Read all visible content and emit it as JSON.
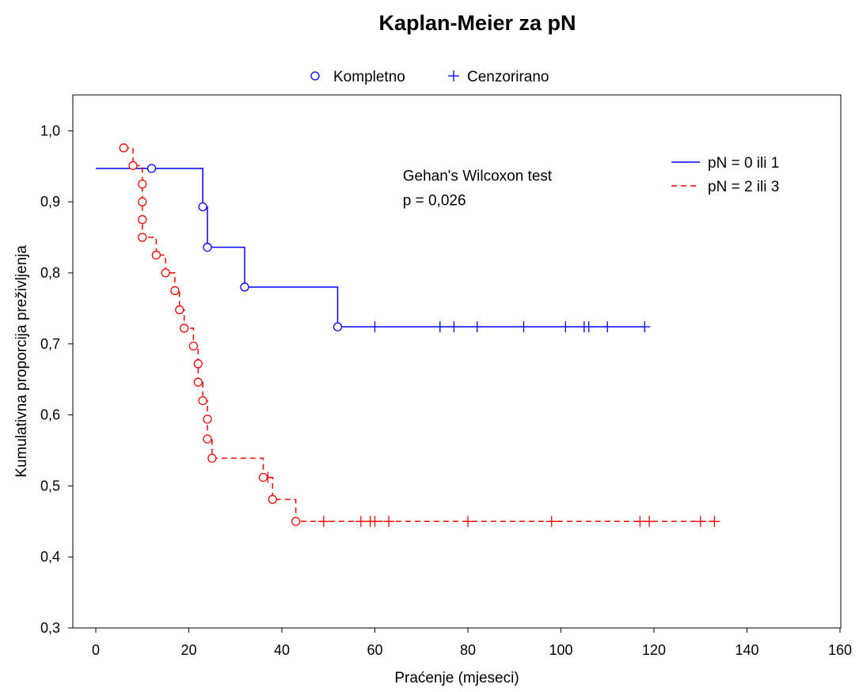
{
  "chart_data": {
    "type": "line",
    "title": "Kaplan-Meier za pN",
    "xlabel": "Praćenje (mjeseci)",
    "ylabel": "Kumulativna proporcija preživljenja",
    "xlim": [
      0,
      160
    ],
    "ylim": [
      0.3,
      1.0
    ],
    "xticks": [
      0,
      20,
      40,
      60,
      80,
      100,
      120,
      140,
      160
    ],
    "xtick_labels": [
      "0",
      "20",
      "40",
      "60",
      "80",
      "100",
      "120",
      "140",
      "160"
    ],
    "yticks": [
      0.3,
      0.4,
      0.5,
      0.6,
      0.7,
      0.8,
      0.9,
      1.0
    ],
    "ytick_labels": [
      "0,3",
      "0,4",
      "0,5",
      "0,6",
      "0,7",
      "0,8",
      "0,9",
      "1,0"
    ],
    "grid": false,
    "marker_legend": [
      {
        "label": "Kompletno",
        "marker": "circle"
      },
      {
        "label": "Cenzorirano",
        "marker": "plus"
      }
    ],
    "legend_position": "top-right",
    "annotation": {
      "line1": "Gehan's Wilcoxon test",
      "line2": "p = 0,026",
      "x": 66,
      "y": 0.93
    },
    "series": [
      {
        "name": "pN = 0 ili 1",
        "color": "#0000ff",
        "dash": "solid",
        "start": [
          0,
          0.947
        ],
        "steps": [
          [
            23,
            0.893
          ],
          [
            24,
            0.836
          ],
          [
            32,
            0.78
          ],
          [
            52,
            0.724
          ]
        ],
        "end_x": 118,
        "events": [
          [
            12,
            0.947
          ],
          [
            23,
            0.893
          ],
          [
            24,
            0.836
          ],
          [
            32,
            0.78
          ],
          [
            52,
            0.724
          ]
        ],
        "censored": [
          [
            60,
            0.724
          ],
          [
            74,
            0.724
          ],
          [
            77,
            0.724
          ],
          [
            82,
            0.724
          ],
          [
            92,
            0.724
          ],
          [
            101,
            0.724
          ],
          [
            105,
            0.724
          ],
          [
            106,
            0.724
          ],
          [
            110,
            0.724
          ],
          [
            118,
            0.724
          ]
        ]
      },
      {
        "name": "pN = 2 ili 3",
        "color": "#ff0000",
        "dash": "dashed",
        "start": [
          6,
          0.976
        ],
        "steps": [
          [
            8,
            0.951
          ],
          [
            10,
            0.925
          ],
          [
            10,
            0.9
          ],
          [
            10,
            0.875
          ],
          [
            10,
            0.85
          ],
          [
            13,
            0.825
          ],
          [
            15,
            0.8
          ],
          [
            17,
            0.775
          ],
          [
            18,
            0.748
          ],
          [
            19,
            0.722
          ],
          [
            21,
            0.697
          ],
          [
            22,
            0.672
          ],
          [
            22,
            0.646
          ],
          [
            23,
            0.62
          ],
          [
            24,
            0.594
          ],
          [
            24,
            0.566
          ],
          [
            25,
            0.539
          ],
          [
            36,
            0.512
          ],
          [
            38,
            0.481
          ],
          [
            43,
            0.45
          ]
        ],
        "end_x": 133,
        "events": [
          [
            6,
            0.976
          ],
          [
            8,
            0.951
          ],
          [
            10,
            0.925
          ],
          [
            10,
            0.9
          ],
          [
            10,
            0.875
          ],
          [
            10,
            0.85
          ],
          [
            13,
            0.825
          ],
          [
            15,
            0.8
          ],
          [
            17,
            0.775
          ],
          [
            18,
            0.748
          ],
          [
            19,
            0.722
          ],
          [
            21,
            0.697
          ],
          [
            22,
            0.672
          ],
          [
            22,
            0.646
          ],
          [
            23,
            0.62
          ],
          [
            24,
            0.594
          ],
          [
            24,
            0.566
          ],
          [
            25,
            0.539
          ],
          [
            36,
            0.512
          ],
          [
            38,
            0.481
          ],
          [
            43,
            0.45
          ]
        ],
        "censored": [
          [
            37,
            0.512
          ],
          [
            49,
            0.45
          ],
          [
            57,
            0.45
          ],
          [
            59,
            0.45
          ],
          [
            60,
            0.45
          ],
          [
            63,
            0.45
          ],
          [
            80,
            0.45
          ],
          [
            98,
            0.45
          ],
          [
            117,
            0.45
          ],
          [
            119,
            0.45
          ],
          [
            130,
            0.45
          ],
          [
            133,
            0.45
          ]
        ]
      }
    ]
  }
}
